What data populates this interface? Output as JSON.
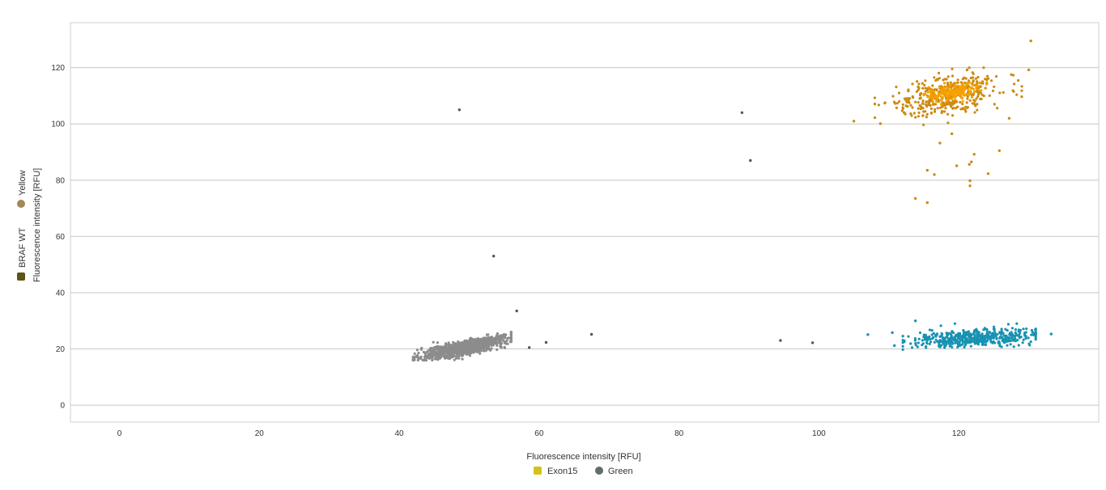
{
  "chart_data": {
    "type": "scatter",
    "xlabel": "Fluorescence intensity [RFU]",
    "ylabel": "Fluorescence intensity [RFU]",
    "xlim": [
      -7,
      140
    ],
    "ylim": [
      -6,
      136
    ],
    "x_ticks": [
      0,
      20,
      40,
      60,
      80,
      100,
      120
    ],
    "y_ticks": [
      0,
      20,
      40,
      60,
      80,
      100,
      120
    ],
    "grid": "horizontal",
    "x_legend": {
      "placement": "bottom-center",
      "entries": [
        {
          "label": "Exon15",
          "color": "#d4c21a",
          "marker": "square"
        },
        {
          "label": "Green",
          "color": "#5f6e6a",
          "marker": "circle"
        }
      ]
    },
    "y_legend": {
      "placement": "left-vertical",
      "entries": [
        {
          "label": "BRAF WT",
          "color": "#5c5418",
          "marker": "square"
        },
        {
          "label": "Yellow",
          "color": "#a08a58",
          "marker": "circle"
        }
      ]
    },
    "clusters": [
      {
        "color": "#8c8c8c",
        "count": 1100,
        "x_center": 49.5,
        "y_center": 20.5,
        "x_spread": 3.0,
        "y_spread": 1.2,
        "slope": 0.5,
        "x_range": [
          42,
          56
        ],
        "y_range": [
          16,
          26
        ]
      },
      {
        "color": "#cc8a10",
        "count": 380,
        "x_center": 118,
        "y_center": 110,
        "x_spread": 4.0,
        "y_spread": 3.5,
        "slope": 0.35,
        "x_range": [
          108,
          129
        ],
        "y_range": [
          96,
          120
        ]
      },
      {
        "color": "#f5a000",
        "count": 180,
        "x_center": 119.5,
        "y_center": 111.5,
        "x_spread": 1.8,
        "y_spread": 1.5,
        "slope": 0.3,
        "x_range": [
          115,
          124
        ],
        "y_range": [
          107,
          116
        ]
      },
      {
        "color": "#1892b2",
        "count": 480,
        "x_center": 122,
        "y_center": 24,
        "x_spread": 4.5,
        "y_spread": 1.5,
        "slope": 0.12,
        "x_range": [
          112,
          131
        ],
        "y_range": [
          19,
          29
        ]
      }
    ],
    "points": [
      {
        "x": 48.6,
        "y": 105,
        "color": "#555555"
      },
      {
        "x": 53.5,
        "y": 53,
        "color": "#555555"
      },
      {
        "x": 56.8,
        "y": 33.5,
        "color": "#555555"
      },
      {
        "x": 61.0,
        "y": 22.3,
        "color": "#555555"
      },
      {
        "x": 58.6,
        "y": 20.5,
        "color": "#555555"
      },
      {
        "x": 67.5,
        "y": 25.2,
        "color": "#555555"
      },
      {
        "x": 89.0,
        "y": 104,
        "color": "#555555"
      },
      {
        "x": 90.2,
        "y": 87,
        "color": "#555555"
      },
      {
        "x": 94.5,
        "y": 23,
        "color": "#555555"
      },
      {
        "x": 99.1,
        "y": 22.2,
        "color": "#555555"
      },
      {
        "x": 107.0,
        "y": 25.1,
        "color": "#1892b2"
      },
      {
        "x": 110.5,
        "y": 25.8,
        "color": "#1892b2"
      },
      {
        "x": 110.8,
        "y": 21.2,
        "color": "#1892b2"
      },
      {
        "x": 113.8,
        "y": 30.0,
        "color": "#1892b2"
      },
      {
        "x": 133.2,
        "y": 25.3,
        "color": "#1892b2"
      },
      {
        "x": 130.3,
        "y": 129.5,
        "color": "#cc8a10"
      },
      {
        "x": 130.0,
        "y": 119.2,
        "color": "#cc8a10"
      },
      {
        "x": 127.2,
        "y": 102.0,
        "color": "#cc8a10"
      },
      {
        "x": 105.0,
        "y": 101.0,
        "color": "#cc8a10"
      },
      {
        "x": 108.8,
        "y": 100.1,
        "color": "#cc8a10"
      },
      {
        "x": 115.5,
        "y": 83.5,
        "color": "#cc8a10"
      },
      {
        "x": 116.5,
        "y": 82.0,
        "color": "#cc8a10"
      },
      {
        "x": 117.3,
        "y": 93.2,
        "color": "#cc8a10"
      },
      {
        "x": 119.7,
        "y": 85.1,
        "color": "#cc8a10"
      },
      {
        "x": 121.5,
        "y": 85.6,
        "color": "#cc8a10"
      },
      {
        "x": 121.8,
        "y": 86.5,
        "color": "#cc8a10"
      },
      {
        "x": 122.2,
        "y": 89.2,
        "color": "#cc8a10"
      },
      {
        "x": 121.6,
        "y": 79.8,
        "color": "#cc8a10"
      },
      {
        "x": 121.6,
        "y": 78.0,
        "color": "#cc8a10"
      },
      {
        "x": 124.2,
        "y": 82.3,
        "color": "#cc8a10"
      },
      {
        "x": 125.8,
        "y": 90.5,
        "color": "#cc8a10"
      },
      {
        "x": 113.8,
        "y": 73.5,
        "color": "#cc8a10"
      },
      {
        "x": 115.5,
        "y": 72.0,
        "color": "#cc8a10"
      },
      {
        "x": 119.0,
        "y": 96.5,
        "color": "#cc8a10"
      }
    ]
  }
}
